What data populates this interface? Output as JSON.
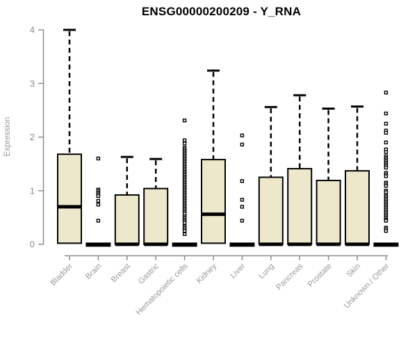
{
  "header": {
    "title": "ENSG00000200209 - Y_RNA"
  },
  "chart_data": {
    "type": "boxplot",
    "title": "ENSG00000200209 - Y_RNA",
    "xlabel": "",
    "ylabel": "Expression",
    "ylim": [
      0,
      4
    ],
    "yticks": [
      0,
      1,
      2,
      3,
      4
    ],
    "grid": false,
    "legend": false,
    "colors": {
      "box_fill": "#EDE8CC",
      "box_border": "#000000",
      "median": "#000000",
      "whisker": "#000000",
      "axis": "#8C8C8C",
      "tick_label": "#8C8C8C",
      "category_label": "#999999",
      "background": "#FFFFFF"
    },
    "categories": [
      "Bladder",
      "Brain",
      "Breast",
      "Gastric",
      "Hematopoietic cells",
      "Kidney",
      "Liver",
      "Lung",
      "Pancreas",
      "Prostate",
      "Skin",
      "Unknown / Other"
    ],
    "boxes": [
      {
        "category": "Bladder",
        "whisker_low": 0,
        "q1": 0.02,
        "median": 0.7,
        "q3": 1.68,
        "whisker_high": 4.0,
        "outliers": []
      },
      {
        "category": "Brain",
        "whisker_low": 0,
        "q1": 0,
        "median": 0,
        "q3": 0,
        "whisker_high": 0,
        "outliers": [
          1.6,
          1.02,
          0.99,
          0.96,
          0.93,
          0.9,
          0.81,
          0.74,
          0.44
        ]
      },
      {
        "category": "Breast",
        "whisker_low": 0,
        "q1": 0,
        "median": 0,
        "q3": 0.92,
        "whisker_high": 1.63,
        "outliers": []
      },
      {
        "category": "Gastric",
        "whisker_low": 0,
        "q1": 0,
        "median": 0,
        "q3": 1.04,
        "whisker_high": 1.59,
        "outliers": []
      },
      {
        "category": "Hematopoietic cells",
        "whisker_low": 0,
        "q1": 0,
        "median": 0,
        "q3": 0,
        "whisker_high": 0,
        "outliers": [
          2.31,
          1.94,
          1.88,
          1.8,
          1.77,
          1.74,
          1.71,
          1.68,
          1.65,
          1.62,
          1.59,
          1.56,
          1.53,
          1.5,
          1.47,
          1.44,
          1.41,
          1.38,
          1.35,
          1.32,
          1.29,
          1.26,
          1.23,
          1.2,
          1.17,
          1.14,
          1.11,
          1.08,
          1.05,
          1.02,
          0.99,
          0.96,
          0.93,
          0.9,
          0.87,
          0.84,
          0.81,
          0.78,
          0.75,
          0.72,
          0.69,
          0.66,
          0.63,
          0.6,
          0.57,
          0.52,
          0.49,
          0.46,
          0.43,
          0.4,
          0.34,
          0.31,
          0.28,
          0.25,
          0.19
        ]
      },
      {
        "category": "Kidney",
        "whisker_low": 0,
        "q1": 0.02,
        "median": 0.56,
        "q3": 1.58,
        "whisker_high": 3.24,
        "outliers": []
      },
      {
        "category": "Liver",
        "whisker_low": 0,
        "q1": 0,
        "median": 0,
        "q3": 0,
        "whisker_high": 0,
        "outliers": [
          2.03,
          1.86,
          1.18,
          0.83,
          0.7,
          0.44
        ]
      },
      {
        "category": "Lung",
        "whisker_low": 0,
        "q1": 0,
        "median": 0,
        "q3": 1.25,
        "whisker_high": 2.56,
        "outliers": []
      },
      {
        "category": "Pancreas",
        "whisker_low": 0,
        "q1": 0,
        "median": 0,
        "q3": 1.41,
        "whisker_high": 2.78,
        "outliers": []
      },
      {
        "category": "Prostate",
        "whisker_low": 0,
        "q1": 0,
        "median": 0,
        "q3": 1.19,
        "whisker_high": 2.53,
        "outliers": []
      },
      {
        "category": "Skin",
        "whisker_low": 0,
        "q1": 0,
        "median": 0,
        "q3": 1.37,
        "whisker_high": 2.57,
        "outliers": []
      },
      {
        "category": "Unknown / Other",
        "whisker_low": 0,
        "q1": 0,
        "median": 0,
        "q3": 0,
        "whisker_high": 0,
        "outliers": [
          2.83,
          2.44,
          2.25,
          2.12,
          2.08,
          1.9,
          1.77,
          1.72,
          1.64,
          1.61,
          1.58,
          1.55,
          1.52,
          1.49,
          1.46,
          1.43,
          1.33,
          1.3,
          1.27,
          1.15,
          1.12,
          1.09,
          1.0,
          0.97,
          0.91,
          0.88,
          0.85,
          0.82,
          0.79,
          0.76,
          0.73,
          0.7,
          0.67,
          0.64,
          0.61,
          0.58,
          0.55,
          0.52,
          0.49,
          0.46,
          0.44,
          0.31,
          0.28,
          0.25
        ]
      }
    ]
  }
}
